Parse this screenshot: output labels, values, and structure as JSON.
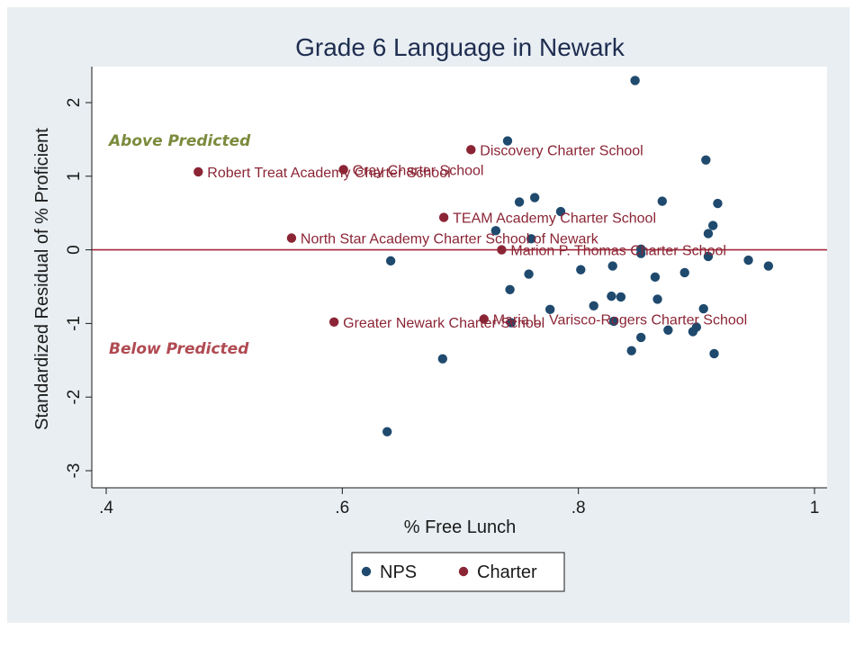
{
  "chart_data": {
    "type": "scatter",
    "title": "Grade 6 Language in Newark",
    "xlabel": "% Free Lunch",
    "ylabel": "Standardized Residual of % Proficient",
    "xlim": [
      0.4,
      1.0
    ],
    "ylim": [
      -3,
      2.5
    ],
    "xticks": [
      ".4",
      ".6",
      ".8",
      "1"
    ],
    "yticks": [
      "2",
      "1",
      "0",
      "-1",
      "-2",
      "-3"
    ],
    "grid": false,
    "legend_position": "bottom",
    "reference_line": {
      "y": 0,
      "color": "#a3283a"
    },
    "annotations": [
      {
        "text": "Above Predicted",
        "color": "#7a8b3c"
      },
      {
        "text": "Below Predicted",
        "color": "#b04a52"
      }
    ],
    "series": [
      {
        "name": "NPS",
        "color": "#1f4a6e",
        "points": [
          [
            0.848,
            2.3
          ],
          [
            0.74,
            1.48
          ],
          [
            0.908,
            1.22
          ],
          [
            0.75,
            0.65
          ],
          [
            0.763,
            0.71
          ],
          [
            0.871,
            0.66
          ],
          [
            0.918,
            0.63
          ],
          [
            0.785,
            0.52
          ],
          [
            0.914,
            0.33
          ],
          [
            0.73,
            0.26
          ],
          [
            0.91,
            0.22
          ],
          [
            0.76,
            0.15
          ],
          [
            0.853,
            0.01
          ],
          [
            0.853,
            -0.05
          ],
          [
            0.91,
            -0.09
          ],
          [
            0.944,
            -0.14
          ],
          [
            0.961,
            -0.22
          ],
          [
            0.641,
            -0.15
          ],
          [
            0.829,
            -0.22
          ],
          [
            0.802,
            -0.27
          ],
          [
            0.758,
            -0.33
          ],
          [
            0.865,
            -0.37
          ],
          [
            0.89,
            -0.31
          ],
          [
            0.742,
            -0.54
          ],
          [
            0.828,
            -0.63
          ],
          [
            0.836,
            -0.64
          ],
          [
            0.867,
            -0.67
          ],
          [
            0.813,
            -0.76
          ],
          [
            0.776,
            -0.81
          ],
          [
            0.906,
            -0.8
          ],
          [
            0.743,
            -0.99
          ],
          [
            0.83,
            -0.97
          ],
          [
            0.9,
            -1.05
          ],
          [
            0.876,
            -1.09
          ],
          [
            0.897,
            -1.11
          ],
          [
            0.853,
            -1.19
          ],
          [
            0.845,
            -1.37
          ],
          [
            0.915,
            -1.41
          ],
          [
            0.685,
            -1.48
          ],
          [
            0.638,
            -2.47
          ]
        ]
      },
      {
        "name": "Charter",
        "color": "#8b2535",
        "points": [
          {
            "x": 0.709,
            "y": 1.36,
            "label": "Discovery Charter School"
          },
          {
            "x": 0.478,
            "y": 1.06,
            "label": "Robert Treat Academy Charter School"
          },
          {
            "x": 0.601,
            "y": 1.09,
            "label": "Gray Charter School"
          },
          {
            "x": 0.686,
            "y": 0.44,
            "label": "TEAM Academy Charter School"
          },
          {
            "x": 0.557,
            "y": 0.16,
            "label": "North Star Academy Charter School of Newark"
          },
          {
            "x": 0.735,
            "y": 0.0,
            "label": "Marion P. Thomas Charter School"
          },
          {
            "x": 0.593,
            "y": -0.98,
            "label": "Greater Newark Charter School"
          },
          {
            "x": 0.72,
            "y": -0.94,
            "label": "Maria L. Varisco-Rogers Charter School"
          }
        ]
      }
    ]
  }
}
